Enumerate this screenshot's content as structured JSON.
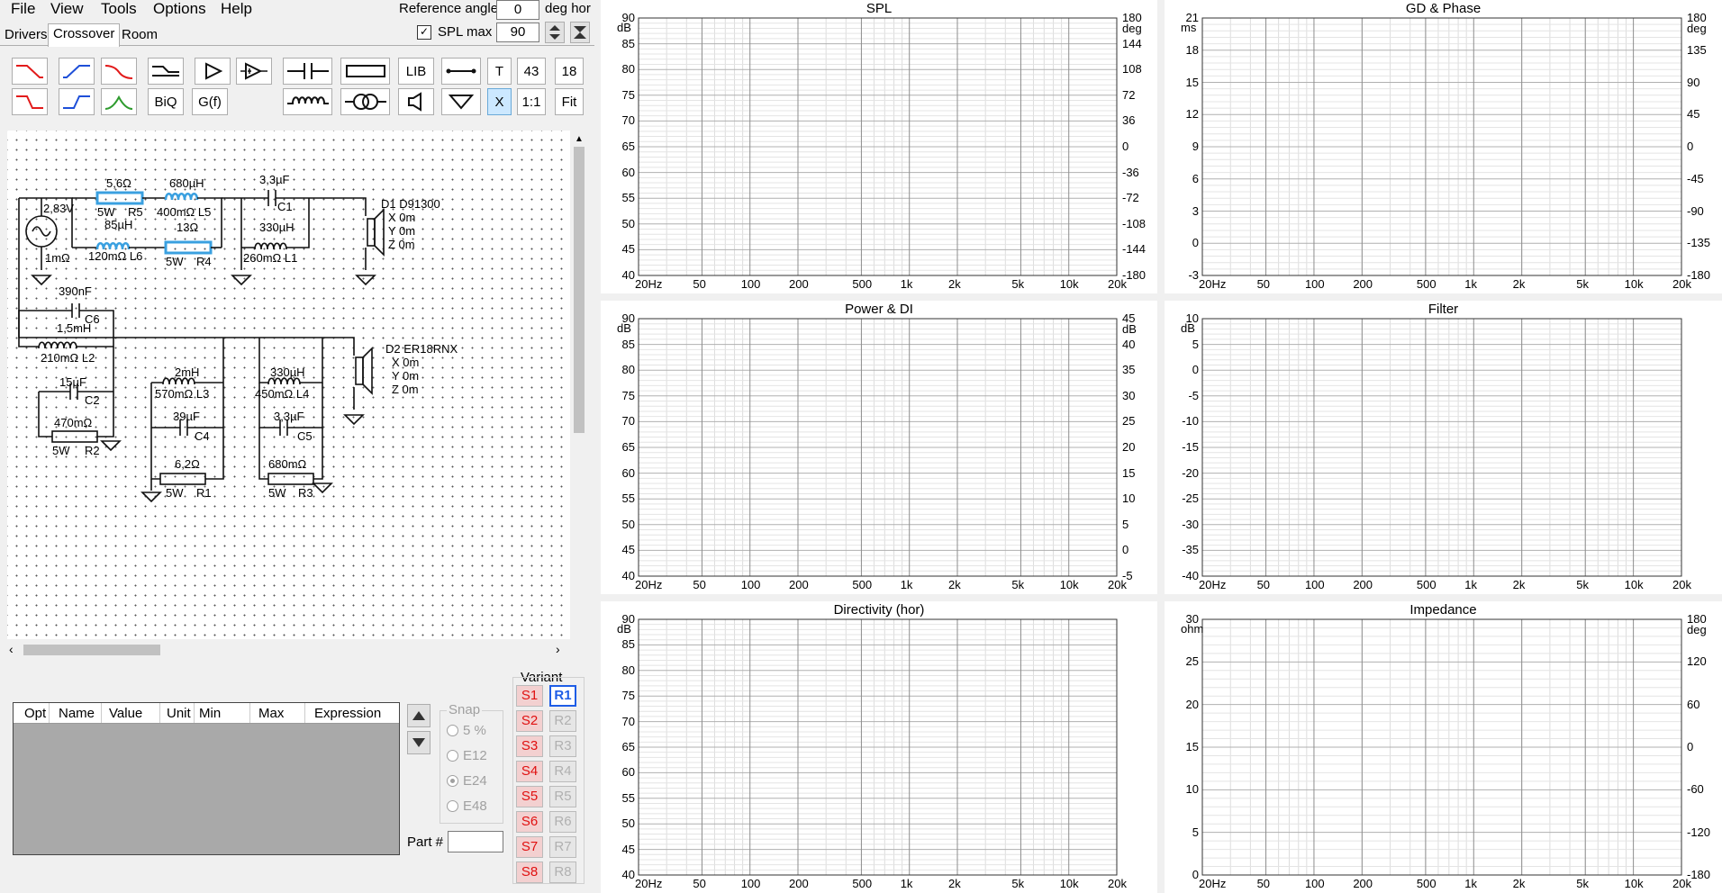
{
  "menu": [
    "File",
    "View",
    "Tools",
    "Options",
    "Help"
  ],
  "tabs": [
    "Drivers",
    "Crossover",
    "Room"
  ],
  "reference": {
    "label": "Reference angle",
    "value": "0",
    "unit": "deg hor"
  },
  "splmax": {
    "label": "SPL max",
    "value": "90",
    "checked": true
  },
  "toolbar": {
    "lib": "LIB",
    "t": "T",
    "n43": "43",
    "n18": "18",
    "biq": "BiQ",
    "gf": "G(f)",
    "x": "X",
    "one": "1:1",
    "fit": "Fit"
  },
  "schematic": {
    "source_voltage": "2,83V",
    "source_res": "1mΩ",
    "r5_value": "5,6Ω",
    "r5_power": "5W",
    "r5_name": "R5",
    "l5_value": "680µH",
    "l5_res": "400mΩ L5",
    "c1_value": "3,3µF",
    "c1_name": "C1",
    "l6_value": "85µH",
    "l6_res": "120mΩ L6",
    "r4_value": "13Ω",
    "r4_power": "5W",
    "r4_name": "R4",
    "l1_value": "330µH",
    "l1_res": "260mΩ L1",
    "d1_name": "D1 D91300",
    "d1_x": "X 0m",
    "d1_y": "Y 0m",
    "d1_z": "Z 0m",
    "c6_value": "390nF",
    "c6_name": "C6",
    "l2_value": "1,5mH",
    "l2_res": "210mΩ L2",
    "c2_value": "15µF",
    "c2_name": "C2",
    "r2_value": "470mΩ",
    "r2_power": "5W",
    "r2_name": "R2",
    "l3_value": "2mH",
    "l3_res": "570mΩ L3",
    "c4_value": "39µF",
    "c4_name": "C4",
    "r1_value": "6,2Ω",
    "r1_power": "5W",
    "r1_name": "R1",
    "l4_value": "330µH",
    "l4_res": "450mΩ L4",
    "c5_value": "3,3µF",
    "c5_name": "C5",
    "r3_value": "680mΩ",
    "r3_power": "5W",
    "r3_name": "R3",
    "d2_name": "D2 ER18RNX",
    "d2_x": "X 0m",
    "d2_y": "Y 0m",
    "d2_z": "Z 0m"
  },
  "opt_table": {
    "columns": [
      "Opt",
      "Name",
      "Value",
      "Unit",
      "Min",
      "Max",
      "Expression"
    ]
  },
  "snap": {
    "label": "Snap",
    "options": [
      "5 %",
      "E12",
      "E24",
      "E48"
    ],
    "selected": "E24"
  },
  "part_label": "Part #",
  "variant": {
    "label": "Variant",
    "s": [
      "S1",
      "S2",
      "S3",
      "S4",
      "S5",
      "S6",
      "S7",
      "S8"
    ],
    "r": [
      "R1",
      "R2",
      "R3",
      "R4",
      "R5",
      "R6",
      "R7",
      "R8"
    ],
    "active": "R1"
  },
  "freq_ticks": [
    "20Hz",
    "50",
    "100",
    "200",
    "500",
    "1k",
    "2k",
    "5k",
    "10k",
    "20k"
  ],
  "charts": {
    "spl": {
      "title": "SPL",
      "yunit": "dB",
      "y2unit": "deg",
      "y": [
        "90",
        "85",
        "80",
        "75",
        "70",
        "65",
        "60",
        "55",
        "50",
        "45",
        "40"
      ],
      "y2": [
        "180",
        "144",
        "108",
        "72",
        "36",
        "0",
        "-36",
        "-72",
        "-108",
        "-144",
        "-180"
      ]
    },
    "gd": {
      "title": "GD & Phase",
      "yunit": "ms",
      "y2unit": "deg",
      "y": [
        "21",
        "18",
        "15",
        "12",
        "9",
        "6",
        "3",
        "0",
        "-3"
      ],
      "y2": [
        "180",
        "135",
        "90",
        "45",
        "0",
        "-45",
        "-90",
        "-135",
        "-180"
      ]
    },
    "power": {
      "title": "Power & DI",
      "yunit": "dB",
      "y2unit": "dB",
      "y": [
        "90",
        "85",
        "80",
        "75",
        "70",
        "65",
        "60",
        "55",
        "50",
        "45",
        "40"
      ],
      "y2": [
        "45",
        "40",
        "35",
        "30",
        "25",
        "20",
        "15",
        "10",
        "5",
        "0",
        "-5"
      ]
    },
    "filter": {
      "title": "Filter",
      "yunit": "dB",
      "y": [
        "10",
        "5",
        "0",
        "-5",
        "-10",
        "-15",
        "-20",
        "-25",
        "-30",
        "-35",
        "-40"
      ]
    },
    "directivity": {
      "title": "Directivity (hor)",
      "yunit": "dB",
      "y": [
        "90",
        "85",
        "80",
        "75",
        "70",
        "65",
        "60",
        "55",
        "50",
        "45",
        "40"
      ]
    },
    "impedance": {
      "title": "Impedance",
      "yunit": "ohm",
      "y2unit": "deg",
      "y": [
        "30",
        "25",
        "20",
        "15",
        "10",
        "5",
        "0"
      ],
      "y2": [
        "180",
        "120",
        "60",
        "0",
        "-60",
        "-120",
        "-180"
      ]
    }
  }
}
